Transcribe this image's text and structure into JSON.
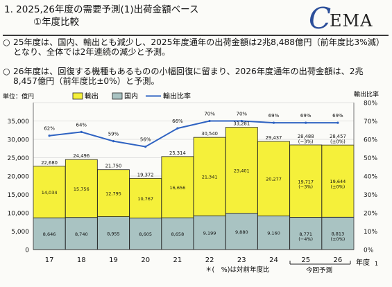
{
  "header": {
    "title_line1": "1. 2025,26年度の需要予測(1)出荷金額ベース",
    "title_line2": "①年度比較",
    "logo_c": "C",
    "logo_rest": "EMA"
  },
  "bullets": [
    {
      "mark": "○",
      "text": "25年度は、国内、輸出とも減少し、2025年度通年の出荷金額は2兆8,488億円（前年度比3%減）となり、全体では2年連続の減少と予測。"
    },
    {
      "mark": "○",
      "text": "26年度は、回復する機種もあるものの小幅回復に留まり、2026年度通年の出荷金額は、2兆8,457億円（前年度比±0%）と予測。"
    }
  ],
  "legend": {
    "unit": "単位：億円",
    "export": "輸出",
    "domestic": "国内",
    "ratio": "輸出比率",
    "right_axis_title": "輸出比率"
  },
  "footer": {
    "note": "＊(　%)は対前年度比",
    "forecast_label": "今回予測",
    "year_label": "年度",
    "page_num": "1"
  },
  "colors": {
    "export": "#f5f03a",
    "domestic": "#a9c3c2",
    "line": "#2f63c2",
    "bar_edge": "#222222"
  },
  "chart_data": {
    "type": "bar",
    "stacked": true,
    "categories": [
      "17",
      "18",
      "19",
      "20",
      "21",
      "22",
      "23",
      "24",
      "25",
      "26"
    ],
    "series": [
      {
        "name": "国内",
        "values": [
          8646,
          8740,
          8955,
          8605,
          8658,
          9199,
          9880,
          9160,
          8771,
          8813
        ],
        "labels": [
          "8,646",
          "8,740",
          "8,955",
          "8,605",
          "8,658",
          "9,199",
          "9,880",
          "9,160",
          "8,771\n(−4%)",
          "8,813\n(±0%)"
        ]
      },
      {
        "name": "輸出",
        "values": [
          14034,
          15756,
          12795,
          10767,
          16656,
          21341,
          23401,
          20277,
          19717,
          19644
        ],
        "labels": [
          "14,034",
          "15,756",
          "12,795",
          "10,767",
          "16,656",
          "21,341",
          "23,401",
          "20,277",
          "19,717\n(−3%)",
          "19,644\n(±0%)"
        ]
      }
    ],
    "totals": [
      "22,680",
      "24,496",
      "21,750",
      "19,372",
      "25,314",
      "30,540",
      "33,281",
      "29,437",
      "28,488\n(−3%)",
      "28,457\n(±0%)"
    ],
    "ratio": {
      "name": "輸出比率",
      "values": [
        62,
        64,
        59,
        56,
        66,
        70,
        70,
        69,
        69,
        69
      ],
      "labels": [
        "62%",
        "64%",
        "59%",
        "56%",
        "66%",
        "70%",
        "70%",
        "69%",
        "69%",
        "69%"
      ]
    },
    "ylim": [
      0,
      40000
    ],
    "yticks": [
      "0",
      "5,000",
      "10,000",
      "15,000",
      "20,000",
      "25,000",
      "30,000",
      "35,000"
    ],
    "ytick_values": [
      0,
      5000,
      10000,
      15000,
      20000,
      25000,
      30000,
      35000
    ],
    "y2lim": [
      0,
      80
    ],
    "y2ticks": [
      "0%",
      "10%",
      "20%",
      "30%",
      "40%",
      "50%",
      "60%",
      "70%",
      "80%"
    ],
    "y2tick_values": [
      0,
      10,
      20,
      30,
      40,
      50,
      60,
      70,
      80
    ]
  }
}
